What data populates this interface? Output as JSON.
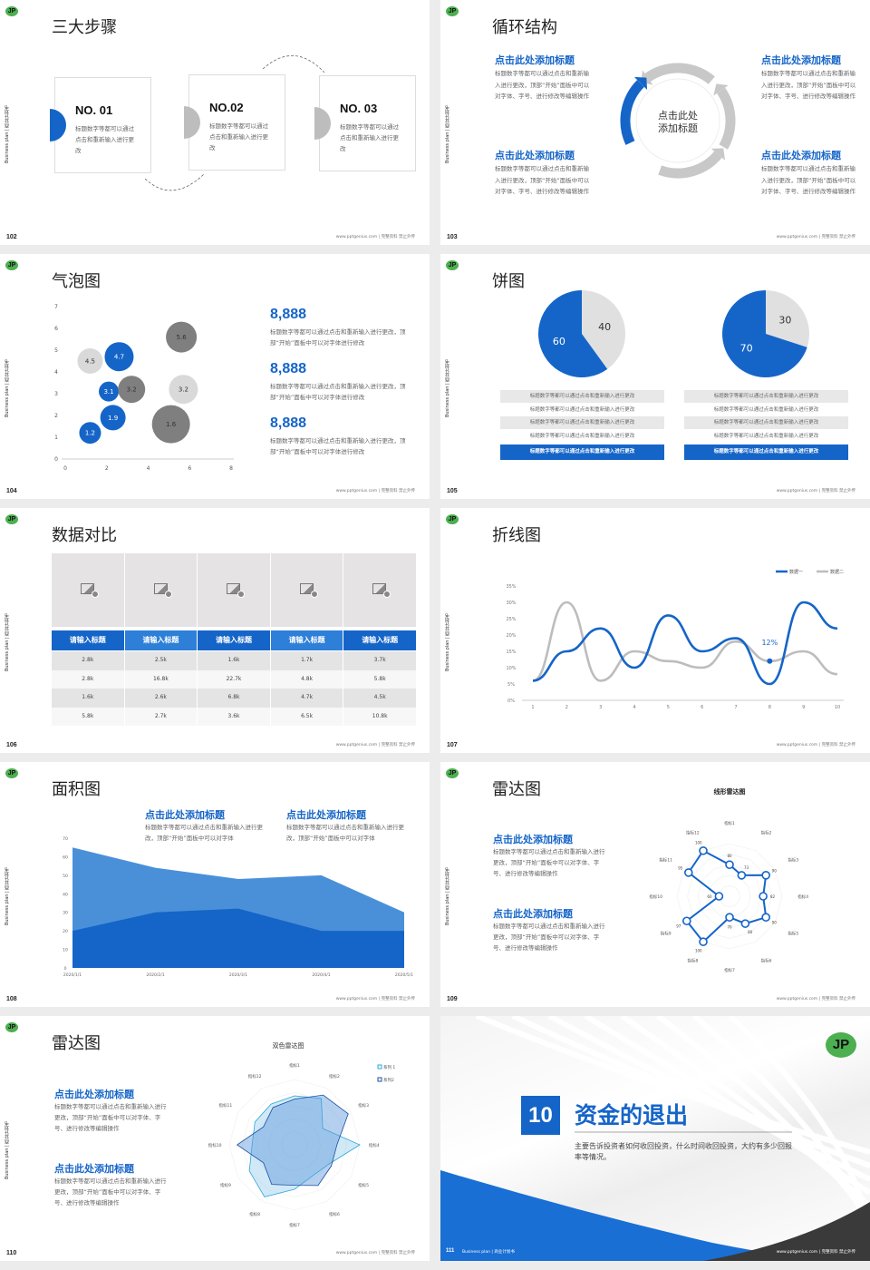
{
  "common": {
    "footer": "www.pptgenius.com | 完整资料 禁止外传",
    "side_label": "Business plan | 商业计划书",
    "logo": "JP"
  },
  "colors": {
    "blue": "#1565c8",
    "light_gray": "#d9d9d9",
    "dark_gray": "#7f7f7f",
    "page_bg": "#ececec"
  },
  "s102": {
    "page": "102",
    "title": "三大步骤",
    "steps": [
      {
        "no": "NO. 01",
        "text": "标题数字等都可以通过点击和重新输入进行更改",
        "active": true
      },
      {
        "no": "NO.02",
        "text": "标题数字等都可以通过点击和重新输入进行更改",
        "active": false
      },
      {
        "no": "NO. 03",
        "text": "标题数字等都可以通过点击和重新输入进行更改",
        "active": false
      }
    ]
  },
  "s103": {
    "page": "103",
    "title": "循环结构",
    "center_line1": "点击此处",
    "center_line2": "添加标题",
    "blocks": [
      {
        "title": "点击此处添加标题",
        "text": "标题数字等都可以通过点击和重新输入进行更改，顶部“开始”面板中可以对字体、字号、进行修改等编辑操作"
      },
      {
        "title": "点击此处添加标题",
        "text": "标题数字等都可以通过点击和重新输入进行更改，顶部“开始”面板中可以对字体、字号、进行修改等编辑操作"
      },
      {
        "title": "点击此处添加标题",
        "text": "标题数字等都可以通过点击和重新输入进行更改，顶部“开始”面板中可以对字体、字号、进行修改等编辑操作"
      },
      {
        "title": "点击此处添加标题",
        "text": "标题数字等都可以通过点击和重新输入进行更改，顶部“开始”面板中可以对字体、字号、进行修改等编辑操作"
      }
    ]
  },
  "s104": {
    "page": "104",
    "title": "气泡图",
    "stats": [
      {
        "value": "8,888",
        "text": "标题数字等都可以通过点击和重新输入进行更改，顶部“开始”面板中可以对字体进行修改"
      },
      {
        "value": "8,888",
        "text": "标题数字等都可以通过点击和重新输入进行更改，顶部“开始”面板中可以对字体进行修改"
      },
      {
        "value": "8,888",
        "text": "标题数字等都可以通过点击和重新输入进行更改，顶部“开始”面板中可以对字体进行修改"
      }
    ]
  },
  "s105": {
    "page": "105",
    "title": "饼图",
    "lists": [
      [
        "标题数字等都可以通过点击和重新输入进行更改",
        "标题数字等都可以通过点击和重新输入进行更改",
        "标题数字等都可以通过点击和重新输入进行更改",
        "标题数字等都可以通过点击和重新输入进行更改",
        "标题数字等都可以通过点击和重新输入进行更改"
      ],
      [
        "标题数字等都可以通过点击和重新输入进行更改",
        "标题数字等都可以通过点击和重新输入进行更改",
        "标题数字等都可以通过点击和重新输入进行更改",
        "标题数字等都可以通过点击和重新输入进行更改",
        "标题数字等都可以通过点击和重新输入进行更改"
      ]
    ]
  },
  "s106": {
    "page": "106",
    "title": "数据对比",
    "headers": [
      "请输入标题",
      "请输入标题",
      "请输入标题",
      "请输入标题",
      "请输入标题"
    ],
    "rows": [
      [
        "2.8k",
        "2.5k",
        "1.6k",
        "1.7k",
        "3.7k"
      ],
      [
        "2.8k",
        "16.8k",
        "22.7k",
        "4.8k",
        "5.8k"
      ],
      [
        "1.6k",
        "2.6k",
        "6.8k",
        "4.7k",
        "4.5k"
      ],
      [
        "5.8k",
        "2.7k",
        "3.6k",
        "6.5k",
        "10.8k"
      ]
    ],
    "image_icon": "add-image-icon"
  },
  "s107": {
    "page": "107",
    "title": "折线图"
  },
  "s108": {
    "page": "108",
    "title": "面积图",
    "blocks": [
      {
        "title": "点击此处添加标题",
        "text": "标题数字等都可以通过点击和重新输入进行更改，顶部“开始”面板中可以对字体"
      },
      {
        "title": "点击此处添加标题",
        "text": "标题数字等都可以通过点击和重新输入进行更改，顶部“开始”面板中可以对字体"
      }
    ]
  },
  "s109": {
    "page": "109",
    "title": "雷达图",
    "blocks": [
      {
        "title": "点击此处添加标题",
        "text": "标题数字等都可以通过点击和重新输入进行更改，顶部“开始”面板中可以对字体、字号、进行修改等编辑操作"
      },
      {
        "title": "点击此处添加标题",
        "text": "标题数字等都可以通过点击和重新输入进行更改，顶部“开始”面板中可以对字体、字号、进行修改等编辑操作"
      }
    ]
  },
  "s110": {
    "page": "110",
    "title": "雷达图",
    "blocks": [
      {
        "title": "点击此处添加标题",
        "text": "标题数字等都可以通过点击和重新输入进行更改，顶部“开始”面板中可以对字体、字号、进行修改等编辑操作"
      },
      {
        "title": "点击此处添加标题",
        "text": "标题数字等都可以通过点击和重新输入进行更改，顶部“开始”面板中可以对字体、字号、进行修改等编辑操作"
      }
    ]
  },
  "s111": {
    "page": "111",
    "number": "10",
    "title": "资金的退出",
    "desc": "主要告诉投资者如何收回投资，什么时间收回投资，大约有多少回报率等情况。",
    "footer_left": "Business plan | 商业计划书"
  },
  "chart_data": [
    {
      "type": "scatter",
      "subtype": "bubble",
      "xlim": [
        0,
        8
      ],
      "ylim": [
        0,
        7
      ],
      "xticks": [
        "0",
        "2",
        "4",
        "6",
        "8"
      ],
      "yticks": [
        "0",
        "1",
        "2",
        "3",
        "4",
        "5",
        "6",
        "7"
      ],
      "points": [
        {
          "x": 1.2,
          "y": 1.2,
          "size": 1.2,
          "label": "1.2",
          "color": "#1565c8"
        },
        {
          "x": 2.3,
          "y": 1.9,
          "size": 1.4,
          "label": "1.9",
          "color": "#1565c8"
        },
        {
          "x": 2.1,
          "y": 3.1,
          "size": 1.1,
          "label": "3.1",
          "color": "#1565c8"
        },
        {
          "x": 2.6,
          "y": 4.7,
          "size": 1.6,
          "label": "4.7",
          "color": "#1565c8"
        },
        {
          "x": 1.2,
          "y": 4.5,
          "size": 1.4,
          "label": "4.5",
          "color": "#d9d9d9"
        },
        {
          "x": 3.2,
          "y": 3.2,
          "size": 1.5,
          "label": "3.2",
          "color": "#7f7f7f"
        },
        {
          "x": 5.7,
          "y": 3.2,
          "size": 1.6,
          "label": "3.2",
          "color": "#d9d9d9"
        },
        {
          "x": 5.6,
          "y": 5.6,
          "size": 1.7,
          "label": "5.6",
          "color": "#7f7f7f"
        },
        {
          "x": 5.1,
          "y": 1.6,
          "size": 2.1,
          "label": "1.6",
          "color": "#7f7f7f"
        }
      ]
    },
    {
      "type": "pie",
      "values": [
        40,
        60
      ],
      "labels": [
        "40",
        "60"
      ],
      "colors": [
        "#e0e0e0",
        "#1565c8"
      ]
    },
    {
      "type": "pie",
      "values": [
        30,
        70
      ],
      "labels": [
        "30",
        "70"
      ],
      "colors": [
        "#e0e0e0",
        "#1565c8"
      ]
    },
    {
      "type": "line",
      "smooth": true,
      "x": [
        1,
        2,
        3,
        4,
        5,
        6,
        7,
        8,
        9,
        10
      ],
      "ylim": [
        0,
        35
      ],
      "yticks": [
        "0%",
        "5%",
        "10%",
        "15%",
        "20%",
        "25%",
        "30%",
        "35%"
      ],
      "legend": "top-right",
      "series": [
        {
          "name": "数据一",
          "color": "#1565c8",
          "values": [
            6,
            15,
            22,
            10,
            26,
            15,
            19,
            5,
            30,
            22
          ]
        },
        {
          "name": "数据二",
          "color": "#bdbdbd",
          "values": [
            6,
            30,
            6,
            15,
            12,
            10,
            18,
            12,
            15,
            8
          ]
        }
      ],
      "annotation": {
        "x": 8,
        "y": 12,
        "text": "12%"
      }
    },
    {
      "type": "area",
      "categories": [
        "2020/1/1",
        "2020/2/1",
        "2020/3/1",
        "2020/4/1",
        "2020/5/1"
      ],
      "ylim": [
        0,
        70
      ],
      "yticks": [
        "0",
        "10",
        "20",
        "30",
        "40",
        "50",
        "60",
        "70"
      ],
      "series": [
        {
          "values": [
            65,
            54,
            48,
            50,
            30
          ],
          "color": "#4a90d9"
        },
        {
          "values": [
            20,
            30,
            32,
            20,
            20
          ],
          "color": "#1565c8"
        }
      ]
    },
    {
      "type": "radar",
      "title": "线形雷达图",
      "axes": [
        "指标1",
        "指标2",
        "指标3",
        "指标4",
        "指标5",
        "指标6",
        "指标7",
        "指标8",
        "指标9",
        "指标10",
        "指标11",
        "指标12"
      ],
      "rlim": [
        50,
        100
      ],
      "series": [
        {
          "values": [
            80,
            73,
            90,
            82,
            90,
            80,
            70,
            100,
            97,
            60,
            95,
            100
          ],
          "color": "#1565c8"
        }
      ],
      "value_labels": [
        "80",
        "73",
        "90",
        "82",
        "90",
        "80",
        "70",
        "100",
        "97",
        "60",
        "95",
        "100"
      ]
    },
    {
      "type": "radar",
      "title": "双色雷达图",
      "axes": [
        "指标1",
        "指标2",
        "指标3",
        "指标4",
        "指标5",
        "指标6",
        "指标7",
        "指标8",
        "指标9",
        "指标10",
        "指标11",
        "指标12"
      ],
      "rlim": [
        0,
        100
      ],
      "legend": "top-right",
      "series": [
        {
          "name": "系列 1",
          "color": "#29a8d8",
          "values": [
            75,
            82,
            50,
            100,
            60,
            55,
            68,
            92,
            80,
            65,
            70,
            72
          ]
        },
        {
          "name": "系列2",
          "color": "#1a4fa0",
          "values": [
            70,
            88,
            95,
            65,
            65,
            72,
            62,
            70,
            55,
            88,
            55,
            66
          ]
        }
      ]
    }
  ]
}
